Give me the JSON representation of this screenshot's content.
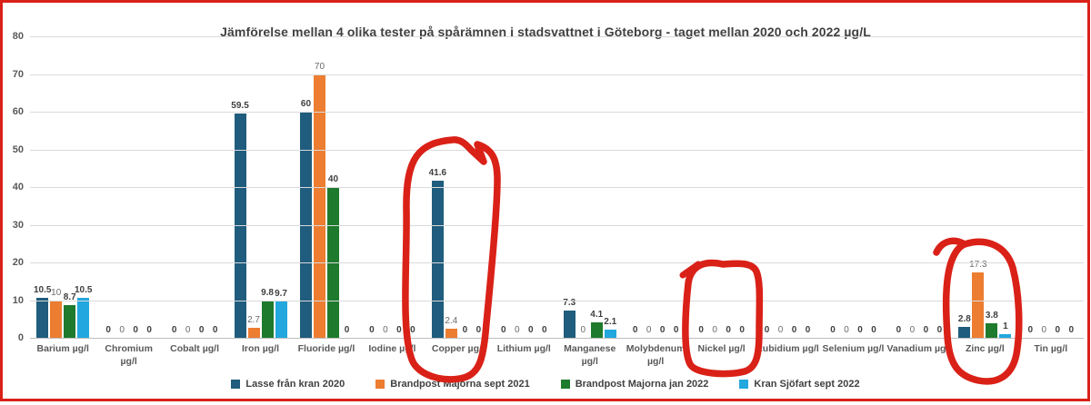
{
  "chart_data": {
    "type": "bar",
    "title": "Jämförelse mellan 4 olika tester på spårämnen i stadsvattnet i Göteborg - taget mellan 2020 och 2022 µg/L",
    "categories": [
      "Barium µg/l",
      "Chromium\nµg/l",
      "Cobalt µg/l",
      "Iron µg/l",
      "Fluoride µg/l",
      "Iodine µg/l",
      "Copper µg/l",
      "Lithium µg/l",
      "Manganese\nµg/l",
      "Molybdenum\nµg/l",
      "Nickel µg/l",
      "Rubidium µg/l",
      "Selenium µg/l",
      "Vanadium µg/l",
      "Zinc µg/l",
      "Tin µg/l"
    ],
    "series": [
      {
        "name": "Lasse från kran 2020",
        "color": "#1f5c7d",
        "values": [
          10.5,
          0,
          0,
          59.5,
          60,
          0,
          41.6,
          0,
          7.3,
          0,
          0,
          0,
          0,
          0,
          2.8,
          0
        ]
      },
      {
        "name": "Brandpost Majorna sept 2021",
        "color": "#ed7d31",
        "values": [
          10,
          0,
          0,
          2.7,
          70,
          0,
          2.4,
          0,
          0,
          0,
          0,
          0,
          0,
          0,
          17.3,
          0
        ]
      },
      {
        "name": "Brandpost Majorna jan 2022",
        "color": "#1e7a2d",
        "values": [
          8.7,
          0,
          0,
          9.8,
          40,
          0,
          0,
          0,
          4.1,
          0,
          0,
          0,
          0,
          0,
          3.8,
          0
        ]
      },
      {
        "name": "Kran Sjöfart sept 2022",
        "color": "#22a7de",
        "values": [
          10.5,
          0,
          0,
          9.7,
          0,
          0,
          0,
          0,
          2.1,
          0,
          0,
          0,
          0,
          0,
          1,
          0
        ]
      }
    ],
    "ylim": [
      0,
      80
    ],
    "yticks": [
      0,
      10,
      20,
      30,
      40,
      50,
      60,
      70,
      80
    ],
    "grid": true,
    "legend_position": "bottom",
    "annotations": {
      "color": "#da2118",
      "items": [
        {
          "shape": "hand-drawn-circle",
          "target": "Copper µg/l"
        },
        {
          "shape": "hand-drawn-circle",
          "target": "Nickel µg/l"
        },
        {
          "shape": "hand-drawn-circle",
          "target": "Zinc µg/l"
        },
        {
          "shape": "hand-drawn-border",
          "target": "entire image"
        }
      ]
    }
  }
}
